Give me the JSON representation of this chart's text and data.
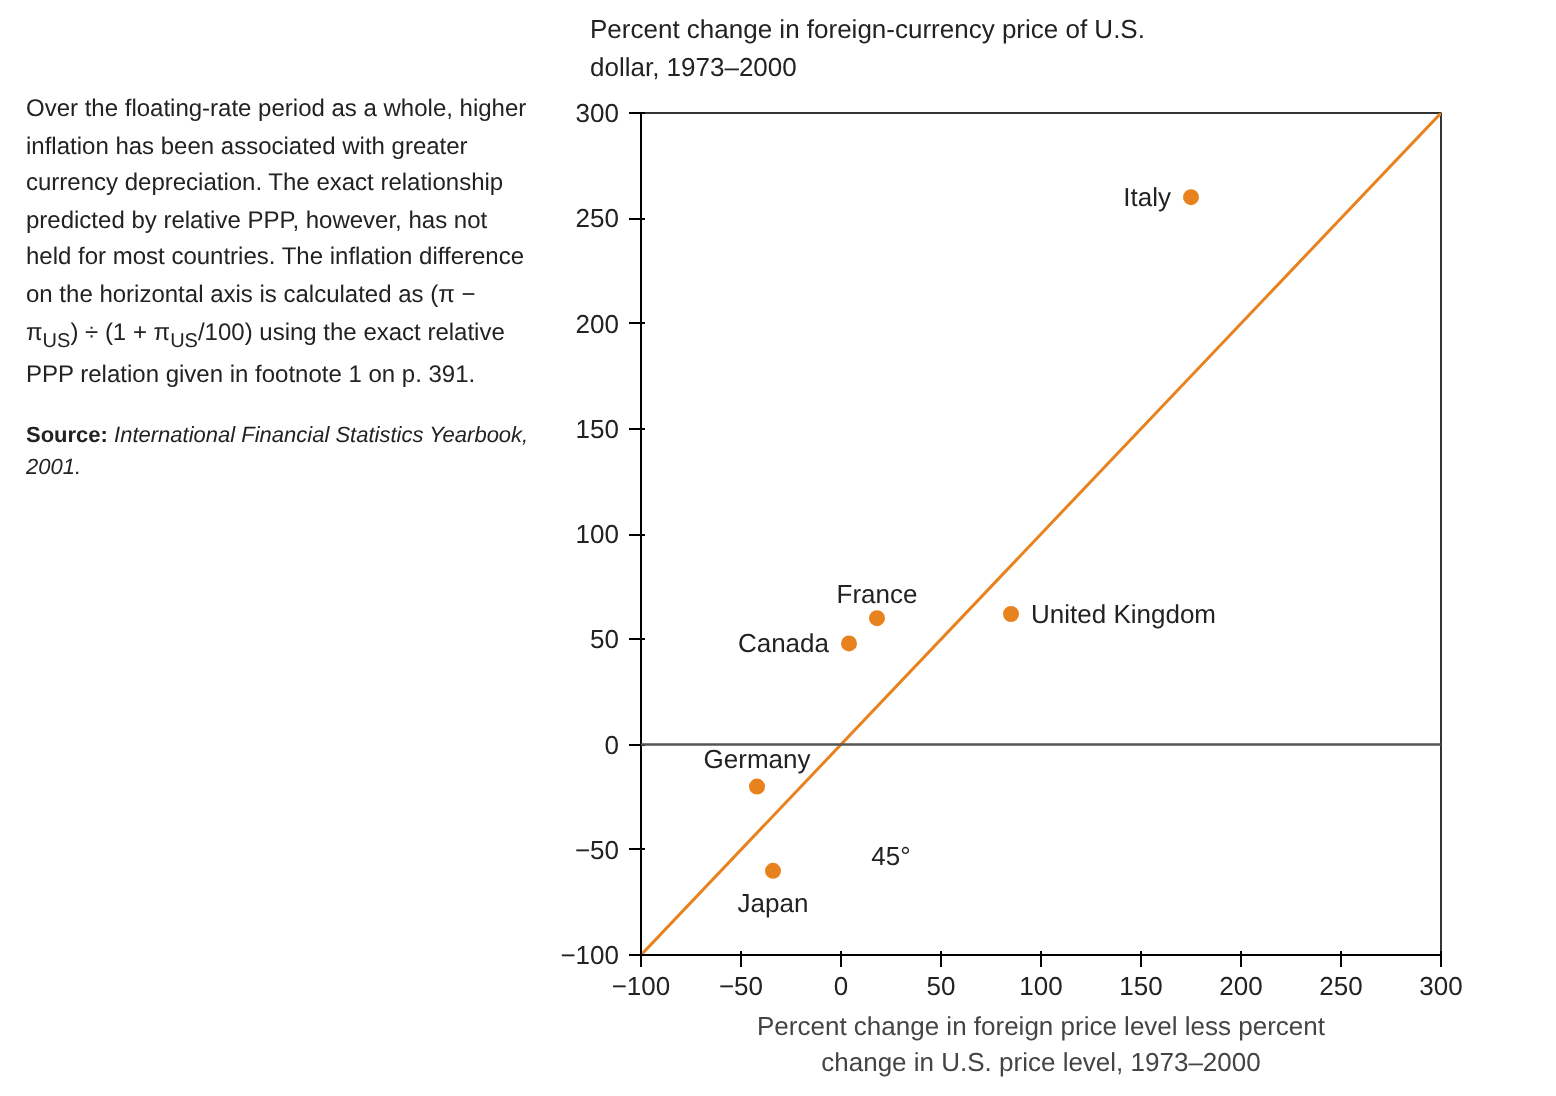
{
  "chart_data": {
    "type": "scatter",
    "ylabel": "Percent change in foreign-currency price of U.S. dollar, 1973–2000",
    "xlabel": "Percent change in foreign price level less percent change in U.S. price level, 1973–2000",
    "xlim": [
      -100,
      300
    ],
    "ylim": [
      -100,
      300
    ],
    "xticks": [
      -100,
      -50,
      0,
      50,
      100,
      150,
      200,
      250,
      300
    ],
    "yticks": [
      -100,
      -50,
      0,
      50,
      100,
      150,
      200,
      250,
      300
    ],
    "grid": false,
    "marker": "circle",
    "series": [
      {
        "name": "Italy",
        "color": "#e8821e",
        "x": [
          175
        ],
        "values": [
          260
        ]
      },
      {
        "name": "United Kingdom",
        "color": "#e8821e",
        "x": [
          85
        ],
        "values": [
          62
        ]
      },
      {
        "name": "France",
        "color": "#e8821e",
        "x": [
          18
        ],
        "values": [
          60
        ]
      },
      {
        "name": "Canada",
        "color": "#e8821e",
        "x": [
          4
        ],
        "values": [
          48
        ]
      },
      {
        "name": "Germany",
        "color": "#e8821e",
        "x": [
          -42
        ],
        "values": [
          -20
        ]
      },
      {
        "name": "Japan",
        "color": "#e8821e",
        "x": [
          -34
        ],
        "values": [
          -60
        ]
      },
      {
        "type": "line",
        "marker": "none",
        "color": "#e8821e",
        "x": [
          -100,
          300
        ],
        "values": [
          -100,
          300
        ]
      }
    ],
    "ref_lines": [
      {
        "axis": "y",
        "value": 0,
        "color": "#555555"
      }
    ],
    "annotations": [
      "45°",
      "Over the floating-rate period as a whole, higher inflation has been associated with greater currency depreciation. The exact relationship predicted by relative PPP, however, has not held for most countries. The inflation difference on the horizontal axis is calculated as (π − π$_{US}$) ÷ (1 + π$_{US}$/100) using the exact relative PPP relation given in footnote 1 on p. 391.",
      "Source: International Financial Statistics Yearbook, 2001."
    ]
  }
}
